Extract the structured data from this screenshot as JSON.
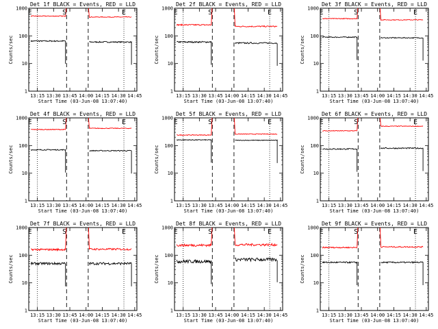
{
  "chart_data": [
    {
      "type": "line",
      "title": "Det 1f BLACK = Events, RED = LLD",
      "xlabel": "Start Time (03-Jun-08 13:07:40)",
      "ylabel": "Counts/sec",
      "scale": "log",
      "ylim": [
        1,
        1000
      ],
      "xtick_labels": [
        "13:15",
        "13:30",
        "13:45",
        "14:00",
        "14:15",
        "14:30",
        "14:45"
      ],
      "ytick_labels": [
        "1",
        "10",
        "100",
        "1000"
      ],
      "markers": [
        {
          "label": "E",
          "time": "13:08"
        },
        {
          "label": "S",
          "time": "13:40"
        },
        {
          "label": "E",
          "time": "14:35"
        }
      ],
      "series": [
        {
          "name": "Events",
          "color": "#000000",
          "before": 65,
          "after": 60,
          "noise": 0.05
        },
        {
          "name": "LLD",
          "color": "#ff0000",
          "before": 520,
          "after": 480,
          "noise": 0.03
        }
      ]
    },
    {
      "type": "line",
      "title": "Det 2f BLACK = Events, RED = LLD",
      "xlabel": "Start Time (03-Jun-08 13:07:40)",
      "ylabel": "Counts/sec",
      "scale": "log",
      "ylim": [
        1,
        1000
      ],
      "xtick_labels": [
        "13:15",
        "13:30",
        "13:45",
        "14:00",
        "14:15",
        "14:30",
        "14:45"
      ],
      "ytick_labels": [
        "1",
        "10",
        "100",
        "1000"
      ],
      "markers": [
        {
          "label": "E",
          "time": "13:08"
        },
        {
          "label": "S",
          "time": "13:40"
        },
        {
          "label": "E",
          "time": "14:35"
        }
      ],
      "series": [
        {
          "name": "Events",
          "color": "#000000",
          "before": 60,
          "after": 55,
          "noise": 0.06
        },
        {
          "name": "LLD",
          "color": "#ff0000",
          "before": 250,
          "after": 220,
          "noise": 0.05
        }
      ]
    },
    {
      "type": "line",
      "title": "Det 3f BLACK = Events, RED = LLD",
      "xlabel": "Start Time (03-Jun-08 13:07:40)",
      "ylabel": "Counts/sec",
      "scale": "log",
      "ylim": [
        1,
        1000
      ],
      "xtick_labels": [
        "13:15",
        "13:30",
        "13:45",
        "14:00",
        "14:15",
        "14:30",
        "14:45"
      ],
      "ytick_labels": [
        "1",
        "10",
        "100",
        "1000"
      ],
      "markers": [
        {
          "label": "E",
          "time": "13:08"
        },
        {
          "label": "S",
          "time": "13:40"
        },
        {
          "label": "E",
          "time": "14:35"
        }
      ],
      "series": [
        {
          "name": "Events",
          "color": "#000000",
          "before": 90,
          "after": 85,
          "noise": 0.04
        },
        {
          "name": "LLD",
          "color": "#ff0000",
          "before": 420,
          "after": 380,
          "noise": 0.03
        }
      ]
    },
    {
      "type": "line",
      "title": "Det 4f BLACK = Events, RED = LLD",
      "xlabel": "Start Time (03-Jun-08 13:07:40)",
      "ylabel": "Counts/sec",
      "scale": "log",
      "ylim": [
        1,
        1000
      ],
      "xtick_labels": [
        "13:15",
        "13:30",
        "13:45",
        "14:00",
        "14:15",
        "14:30",
        "14:45"
      ],
      "ytick_labels": [
        "1",
        "10",
        "100",
        "1000"
      ],
      "markers": [
        {
          "label": "E",
          "time": "13:08"
        },
        {
          "label": "S",
          "time": "13:40"
        },
        {
          "label": "E",
          "time": "14:35"
        }
      ],
      "series": [
        {
          "name": "Events",
          "color": "#000000",
          "before": 70,
          "after": 65,
          "noise": 0.04
        },
        {
          "name": "LLD",
          "color": "#ff0000",
          "before": 380,
          "after": 420,
          "noise": 0.03
        }
      ]
    },
    {
      "type": "line",
      "title": "Det 5f BLACK = Events, RED = LLD",
      "xlabel": "Start Time (03-Jun-08 13:07:40)",
      "ylabel": "Counts/sec",
      "scale": "log",
      "ylim": [
        1,
        1000
      ],
      "xtick_labels": [
        "13:15",
        "13:30",
        "13:45",
        "14:00",
        "14:15",
        "14:30",
        "14:45"
      ],
      "ytick_labels": [
        "1",
        "10",
        "100",
        "1000"
      ],
      "markers": [
        {
          "label": "E",
          "time": "13:08"
        },
        {
          "label": "S",
          "time": "13:40"
        },
        {
          "label": "E",
          "time": "14:35"
        }
      ],
      "series": [
        {
          "name": "Events",
          "color": "#000000",
          "before": 160,
          "after": 155,
          "noise": 0.03
        },
        {
          "name": "LLD",
          "color": "#ff0000",
          "before": 240,
          "after": 260,
          "noise": 0.03
        }
      ]
    },
    {
      "type": "line",
      "title": "Det 6f BLACK = Events, RED = LLD",
      "xlabel": "Start Time (03-Jun-08 13:07:40)",
      "ylabel": "Counts/sec",
      "scale": "log",
      "ylim": [
        1,
        1000
      ],
      "xtick_labels": [
        "13:15",
        "13:30",
        "13:45",
        "14:00",
        "14:15",
        "14:30",
        "14:45"
      ],
      "ytick_labels": [
        "1",
        "10",
        "100",
        "1000"
      ],
      "markers": [
        {
          "label": "E",
          "time": "13:08"
        },
        {
          "label": "S",
          "time": "13:40"
        },
        {
          "label": "E",
          "time": "14:35"
        }
      ],
      "series": [
        {
          "name": "Events",
          "color": "#000000",
          "before": 75,
          "after": 80,
          "noise": 0.05
        },
        {
          "name": "LLD",
          "color": "#ff0000",
          "before": 340,
          "after": 500,
          "noise": 0.03
        }
      ]
    },
    {
      "type": "line",
      "title": "Det 7f BLACK = Events, RED = LLD",
      "xlabel": "Start Time (03-Jun-08 13:07:40)",
      "ylabel": "Counts/sec",
      "scale": "log",
      "ylim": [
        1,
        1000
      ],
      "xtick_labels": [
        "13:15",
        "13:30",
        "13:45",
        "14:00",
        "14:15",
        "14:30",
        "14:45"
      ],
      "ytick_labels": [
        "1",
        "10",
        "100",
        "1000"
      ],
      "markers": [
        {
          "label": "E",
          "time": "13:08"
        },
        {
          "label": "S",
          "time": "13:40"
        },
        {
          "label": "E",
          "time": "14:35"
        }
      ],
      "series": [
        {
          "name": "Events",
          "color": "#000000",
          "before": 50,
          "after": 50,
          "noise": 0.1
        },
        {
          "name": "LLD",
          "color": "#ff0000",
          "before": 160,
          "after": 165,
          "noise": 0.08
        }
      ]
    },
    {
      "type": "line",
      "title": "Det 8f BLACK = Events, RED = LLD",
      "xlabel": "Start Time (03-Jun-08 13:07:40)",
      "ylabel": "Counts/sec",
      "scale": "log",
      "ylim": [
        1,
        1000
      ],
      "xtick_labels": [
        "13:15",
        "13:30",
        "13:45",
        "14:00",
        "14:15",
        "14:30",
        "14:45"
      ],
      "ytick_labels": [
        "1",
        "10",
        "100",
        "1000"
      ],
      "markers": [
        {
          "label": "E",
          "time": "13:08"
        },
        {
          "label": "S",
          "time": "13:40"
        },
        {
          "label": "E",
          "time": "14:35"
        }
      ],
      "series": [
        {
          "name": "Events",
          "color": "#000000",
          "before": 60,
          "after": 70,
          "noise": 0.14
        },
        {
          "name": "LLD",
          "color": "#ff0000",
          "before": 230,
          "after": 240,
          "noise": 0.1
        }
      ]
    },
    {
      "type": "line",
      "title": "Det 9f BLACK = Events, RED = LLD",
      "xlabel": "Start Time (03-Jun-08 13:07:40)",
      "ylabel": "Counts/sec",
      "scale": "log",
      "ylim": [
        1,
        1000
      ],
      "xtick_labels": [
        "13:15",
        "13:30",
        "13:45",
        "14:00",
        "14:15",
        "14:30",
        "14:45"
      ],
      "ytick_labels": [
        "1",
        "10",
        "100",
        "1000"
      ],
      "markers": [
        {
          "label": "E",
          "time": "13:08"
        },
        {
          "label": "S",
          "time": "13:40"
        },
        {
          "label": "E",
          "time": "14:35"
        }
      ],
      "series": [
        {
          "name": "Events",
          "color": "#000000",
          "before": 55,
          "after": 55,
          "noise": 0.06
        },
        {
          "name": "LLD",
          "color": "#ff0000",
          "before": 190,
          "after": 200,
          "noise": 0.05
        }
      ]
    }
  ]
}
